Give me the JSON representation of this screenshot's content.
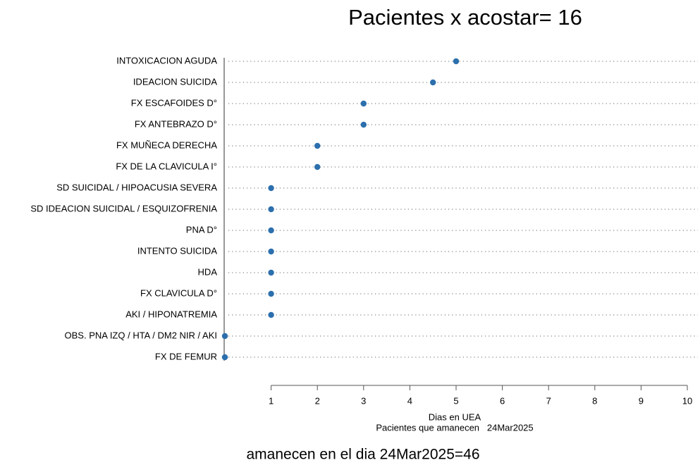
{
  "chart_data": {
    "type": "dot",
    "title": "Pacientes x acostar= 16",
    "categories": [
      "INTOXICACION AGUDA",
      "IDEACION SUICIDA",
      "FX ESCAFOIDES D°",
      "FX ANTEBRAZO D°",
      "FX MUÑECA DERECHA",
      "FX DE LA CLAVICULA I°",
      "SD SUICIDAL / HIPOACUSIA SEVERA",
      "SD IDEACION SUICIDAL / ESQUIZOFRENIA",
      "PNA D°",
      "INTENTO SUICIDA",
      "HDA",
      "FX CLAVICULA D°",
      "AKI / HIPONATREMIA",
      "OBS. PNA IZQ / HTA / DM2 NIR / AKI",
      "FX DE FEMUR"
    ],
    "values": [
      5,
      4.5,
      3,
      3,
      2,
      2,
      1,
      1,
      1,
      1,
      1,
      1,
      1,
      0,
      0
    ],
    "color": "#2c6fad",
    "xlim": [
      0,
      10
    ],
    "xticks": [
      1,
      2,
      3,
      4,
      5,
      6,
      7,
      8,
      9,
      10
    ],
    "xlabel": "Dias en UEA",
    "subtitle": "Pacientes que amanecen   24Mar2025",
    "footer": "amanecen en el dia 24Mar2025=46"
  }
}
